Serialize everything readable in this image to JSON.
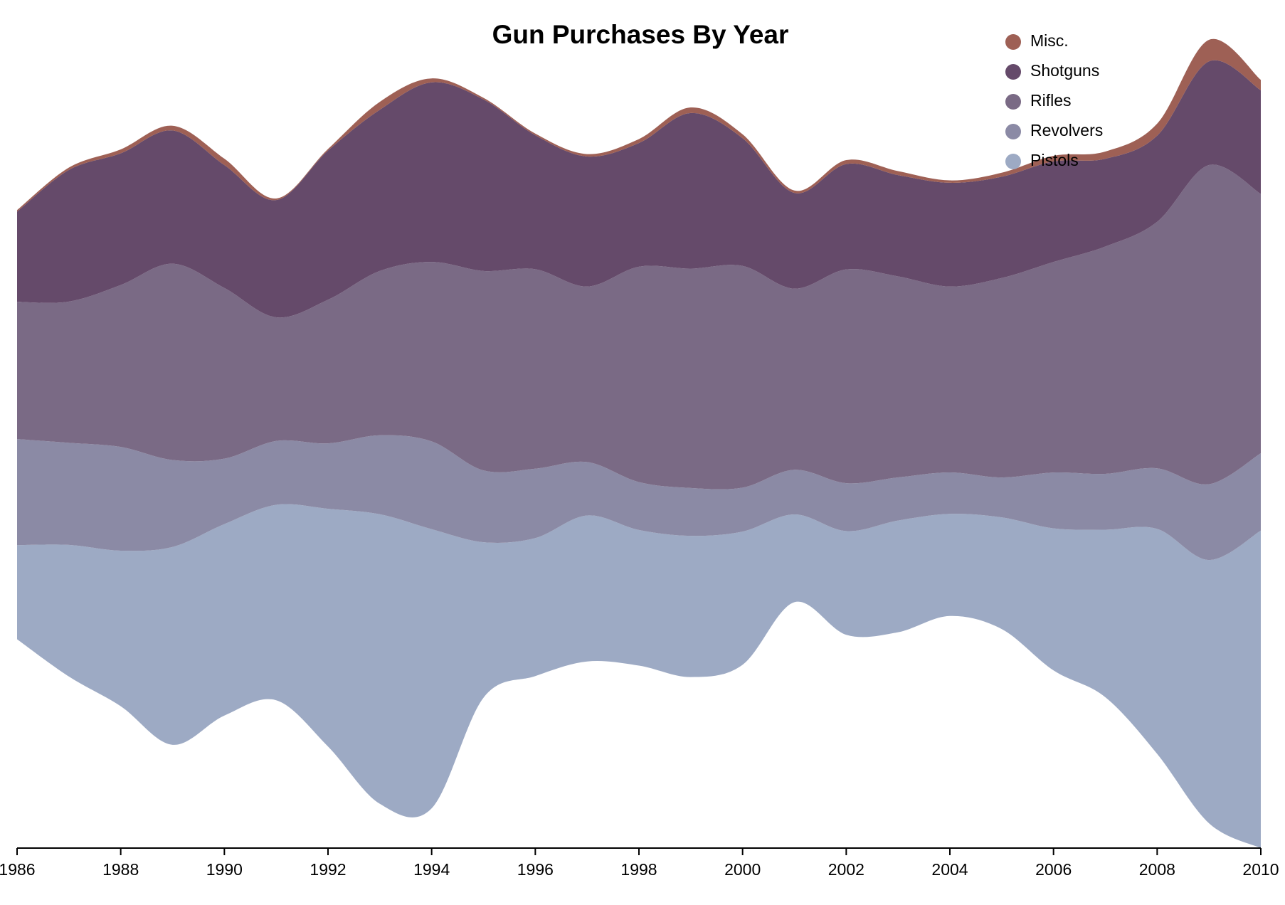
{
  "chart_data": {
    "type": "streamgraph",
    "title": "Gun Purchases By Year",
    "x": [
      1986,
      1987,
      1988,
      1989,
      1990,
      1991,
      1992,
      1993,
      1994,
      1995,
      1996,
      1997,
      1998,
      1999,
      2000,
      2001,
      2002,
      2003,
      2004,
      2005,
      2006,
      2007,
      2008,
      2009,
      2010
    ],
    "xlim": [
      1986,
      2010
    ],
    "xticks": [
      1986,
      1988,
      1990,
      1992,
      1994,
      1996,
      1998,
      2000,
      2002,
      2004,
      2006,
      2008,
      2010
    ],
    "series": [
      {
        "name": "Pistols",
        "color": "#9daac4",
        "values": [
          118,
          165,
          195,
          248,
          240,
          245,
          298,
          363,
          350,
          195,
          173,
          183,
          170,
          177,
          167,
          110,
          130,
          140,
          128,
          140,
          178,
          210,
          282,
          330,
          398
        ]
      },
      {
        "name": "Revolvers",
        "color": "#8b8aa5",
        "values": [
          133,
          128,
          130,
          109,
          82,
          80,
          82,
          99,
          110,
          90,
          87,
          67,
          60,
          60,
          55,
          56,
          60,
          54,
          52,
          50,
          70,
          70,
          76,
          95,
          97
        ]
      },
      {
        "name": "Rifles",
        "color": "#7a6a85",
        "values": [
          172,
          177,
          203,
          246,
          214,
          155,
          180,
          206,
          225,
          250,
          250,
          220,
          270,
          275,
          278,
          227,
          268,
          252,
          233,
          250,
          264,
          285,
          309,
          400,
          325
        ]
      },
      {
        "name": "Shotguns",
        "color": "#654a6a",
        "values": [
          113,
          165,
          165,
          167,
          154,
          147,
          187,
          202,
          225,
          215,
          168,
          163,
          155,
          195,
          160,
          120,
          132,
          127,
          130,
          127,
          126,
          110,
          108,
          130,
          130
        ]
      },
      {
        "name": "Misc.",
        "color": "#9e6055",
        "values": [
          2,
          3,
          5,
          6,
          8,
          2,
          2,
          10,
          5,
          2,
          2,
          3,
          5,
          7,
          5,
          3,
          5,
          5,
          3,
          5,
          7,
          9,
          15,
          27,
          13
        ]
      }
    ],
    "offset": "wiggle",
    "legend": "top-right"
  }
}
